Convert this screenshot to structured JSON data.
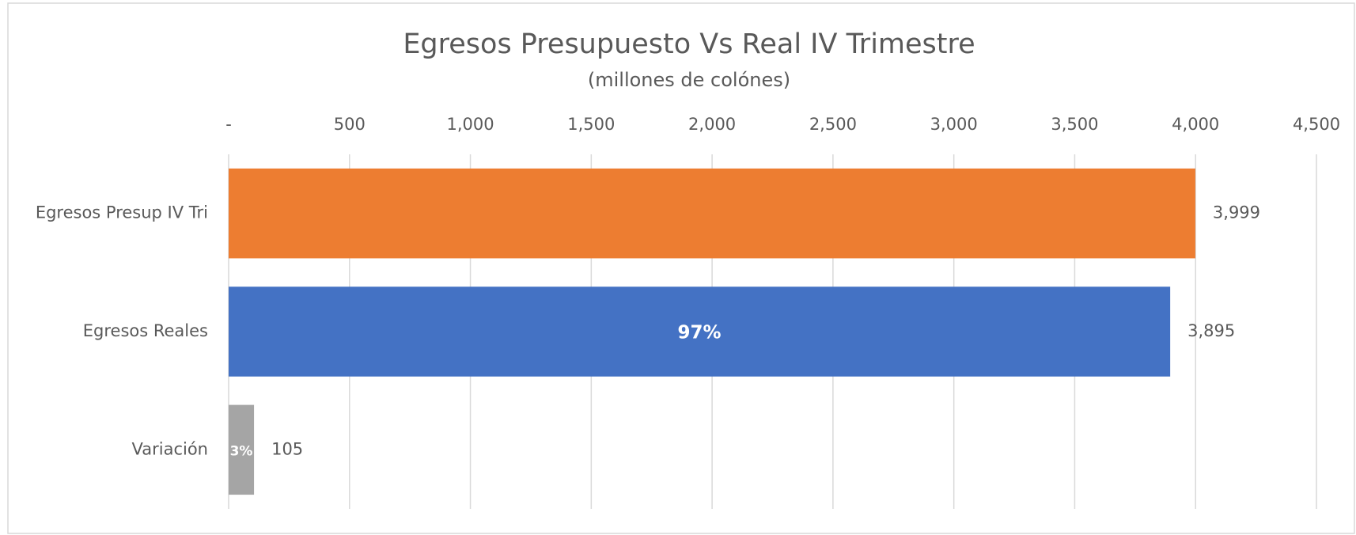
{
  "chart_data": {
    "type": "barh",
    "title": "Egresos Presupuesto Vs Real IV Trimestre",
    "subtitle": "(millones de colónes)",
    "categories": [
      "Egresos Presup IV Tri",
      "Egresos Reales",
      "Variación"
    ],
    "values": [
      3999,
      3895,
      105
    ],
    "value_labels": [
      "3,999",
      "3,895",
      "105"
    ],
    "inner_labels": [
      null,
      "97%",
      "3%"
    ],
    "colors": [
      "#ed7d31",
      "#4472c4",
      "#a5a5a5"
    ],
    "xlim": [
      0,
      4500
    ],
    "xticks": [
      {
        "value": 0,
        "label": "-"
      },
      500,
      {
        "value": 1000,
        "label": "1,000"
      },
      {
        "value": 1500,
        "label": "1,500"
      },
      {
        "value": 2000,
        "label": "2,000"
      },
      {
        "value": 2500,
        "label": "2,500"
      },
      {
        "value": 3000,
        "label": "3,000"
      },
      {
        "value": 3500,
        "label": "3,500"
      },
      {
        "value": 4000,
        "label": "4,000"
      },
      {
        "value": 4500,
        "label": "4,500"
      }
    ],
    "grid": true
  }
}
